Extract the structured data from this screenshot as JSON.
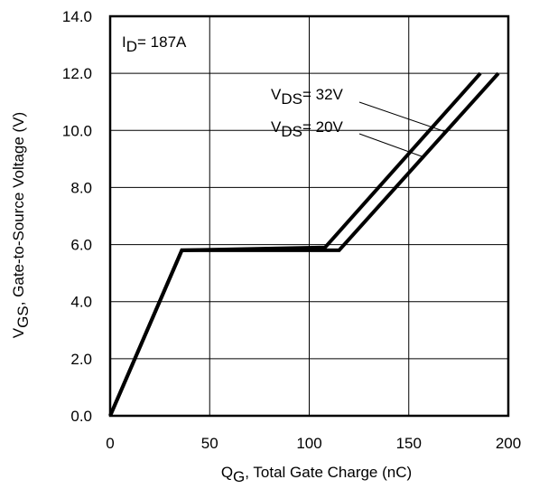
{
  "chart_data": {
    "type": "line",
    "xlabel": {
      "main": "Q",
      "sub": "G",
      "rest": ",  Total Gate Charge (nC)"
    },
    "ylabel": {
      "main": "V",
      "sub": "GS",
      "rest": ", Gate-to-Source Voltage (V)"
    },
    "xlim": [
      0,
      200
    ],
    "ylim": [
      0,
      14
    ],
    "xticks": [
      0,
      50,
      100,
      150,
      200
    ],
    "xtick_labels": [
      "0",
      "50",
      "100",
      "150",
      "200"
    ],
    "yticks": [
      0,
      2,
      4,
      6,
      8,
      10,
      12,
      14
    ],
    "ytick_labels": [
      "0.0",
      "2.0",
      "4.0",
      "6.0",
      "8.0",
      "10.0",
      "12.0",
      "14.0"
    ],
    "grid": true,
    "annotation": {
      "main": "I",
      "sub": "D",
      "rest": "= 187A"
    },
    "series": [
      {
        "label": {
          "main": "V",
          "sub": "DS",
          "rest": "= 32V"
        },
        "x": [
          0,
          36,
          108,
          186
        ],
        "y": [
          0,
          5.8,
          5.9,
          12.0
        ]
      },
      {
        "label": {
          "main": "V",
          "sub": "DS",
          "rest": "= 20V"
        },
        "x": [
          0,
          36,
          115,
          195
        ],
        "y": [
          0,
          5.8,
          5.8,
          12.0
        ]
      }
    ]
  }
}
